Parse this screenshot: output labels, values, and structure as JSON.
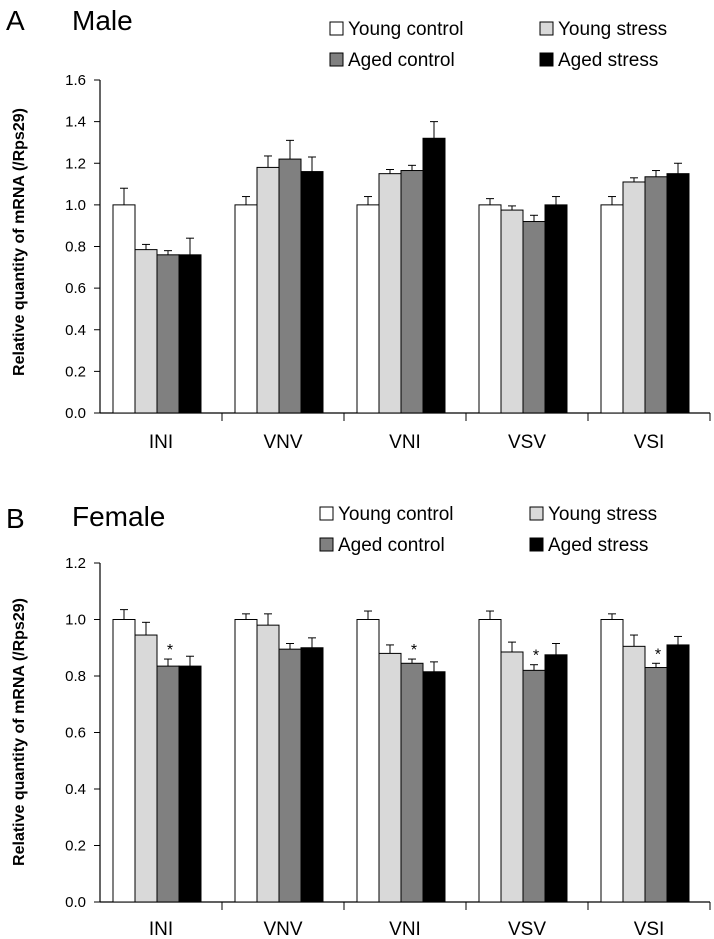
{
  "chart_data": [
    {
      "type": "bar",
      "panel_label": "A",
      "title": "Male",
      "ylabel": "Relative quantity of mRNA (/Rps29)",
      "xlabel": "",
      "ylim": [
        0,
        1.6
      ],
      "yticks": [
        "0.0",
        "0.2",
        "0.4",
        "0.6",
        "0.8",
        "1.0",
        "1.2",
        "1.4",
        "1.6"
      ],
      "ytick_values": [
        0,
        0.2,
        0.4,
        0.6,
        0.8,
        1.0,
        1.2,
        1.4,
        1.6
      ],
      "categories": [
        "INI",
        "VNV",
        "VNI",
        "VSV",
        "VSI"
      ],
      "series": [
        {
          "name": "Young control",
          "color": "#ffffff",
          "values": [
            1.0,
            1.0,
            1.0,
            1.0,
            1.0
          ],
          "errors": [
            0.08,
            0.04,
            0.04,
            0.03,
            0.04
          ]
        },
        {
          "name": "Young stress",
          "color": "#d9d9d9",
          "values": [
            0.785,
            1.18,
            1.15,
            0.975,
            1.11
          ],
          "errors": [
            0.025,
            0.055,
            0.02,
            0.02,
            0.02
          ]
        },
        {
          "name": "Aged control",
          "color": "#808080",
          "values": [
            0.76,
            1.22,
            1.165,
            0.92,
            1.135
          ],
          "errors": [
            0.02,
            0.09,
            0.025,
            0.03,
            0.03
          ]
        },
        {
          "name": "Aged stress",
          "color": "#000000",
          "values": [
            0.76,
            1.16,
            1.32,
            1.0,
            1.15
          ],
          "errors": [
            0.08,
            0.07,
            0.08,
            0.04,
            0.05
          ]
        }
      ],
      "annotations": []
    },
    {
      "type": "bar",
      "panel_label": "B",
      "title": "Female",
      "ylabel": "Relative quantity of mRNA (/Rps29)",
      "xlabel": "",
      "ylim": [
        0,
        1.2
      ],
      "yticks": [
        "0.0",
        "0.2",
        "0.4",
        "0.6",
        "0.8",
        "1.0",
        "1.2"
      ],
      "ytick_values": [
        0,
        0.2,
        0.4,
        0.6,
        0.8,
        1.0,
        1.2
      ],
      "categories": [
        "INI",
        "VNV",
        "VNI",
        "VSV",
        "VSI"
      ],
      "series": [
        {
          "name": "Young control",
          "color": "#ffffff",
          "values": [
            1.0,
            1.0,
            1.0,
            1.0,
            1.0
          ],
          "errors": [
            0.035,
            0.02,
            0.03,
            0.03,
            0.02
          ]
        },
        {
          "name": "Young stress",
          "color": "#d9d9d9",
          "values": [
            0.945,
            0.98,
            0.88,
            0.885,
            0.905
          ],
          "errors": [
            0.045,
            0.04,
            0.03,
            0.035,
            0.04
          ]
        },
        {
          "name": "Aged control",
          "color": "#808080",
          "values": [
            0.835,
            0.895,
            0.845,
            0.82,
            0.83
          ],
          "errors": [
            0.025,
            0.02,
            0.015,
            0.02,
            0.015
          ]
        },
        {
          "name": "Aged stress",
          "color": "#000000",
          "values": [
            0.835,
            0.9,
            0.815,
            0.875,
            0.91
          ],
          "errors": [
            0.035,
            0.035,
            0.035,
            0.04,
            0.03
          ]
        }
      ],
      "annotations": [
        {
          "text": "*",
          "category_index": 0,
          "series_index": 2
        },
        {
          "text": "*",
          "category_index": 2,
          "series_index": 2
        },
        {
          "text": "*",
          "category_index": 3,
          "series_index": 2
        },
        {
          "text": "*",
          "category_index": 4,
          "series_index": 2
        }
      ]
    }
  ]
}
